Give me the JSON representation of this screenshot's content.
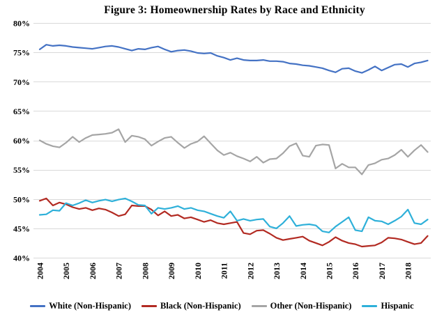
{
  "chart_data": {
    "type": "line",
    "title": "Figure 3: Homeownership Rates by Race and Ethnicity",
    "x_unit": "quarterly",
    "x_tick_labels": [
      "2004",
      "2005",
      "2006",
      "2007",
      "2008",
      "2009",
      "2010",
      "2011",
      "2012",
      "2013",
      "2014",
      "2015",
      "2016",
      "2017",
      "2018"
    ],
    "quarters_per_year": 4,
    "ylim": [
      40,
      80
    ],
    "y_ticks": [
      40,
      45,
      50,
      55,
      60,
      65,
      70,
      75,
      80
    ],
    "y_tick_labels": [
      "40%",
      "45%",
      "50%",
      "55%",
      "60%",
      "65%",
      "70%",
      "75%",
      "80%"
    ],
    "grid": "horizontal",
    "gridline_color": "#d9d9d9",
    "legend_position": "bottom",
    "series": [
      {
        "name": "White (Non-Hispanic)",
        "color": "#4472c4",
        "values": [
          75.5,
          76.3,
          76.1,
          76.2,
          76.1,
          75.9,
          75.8,
          75.7,
          75.6,
          75.8,
          76.0,
          76.1,
          75.9,
          75.6,
          75.3,
          75.6,
          75.5,
          75.8,
          76.0,
          75.5,
          75.1,
          75.3,
          75.4,
          75.2,
          74.9,
          74.8,
          74.9,
          74.4,
          74.1,
          73.7,
          74.0,
          73.7,
          73.6,
          73.6,
          73.7,
          73.5,
          73.5,
          73.4,
          73.1,
          73.0,
          72.8,
          72.7,
          72.5,
          72.3,
          71.9,
          71.6,
          72.2,
          72.3,
          71.8,
          71.5,
          72.0,
          72.6,
          71.9,
          72.4,
          72.9,
          73.0,
          72.5,
          73.1,
          73.3,
          73.6
        ]
      },
      {
        "name": "Black (Non-Hispanic)",
        "color": "#b22a22",
        "values": [
          49.7,
          50.1,
          48.9,
          49.4,
          49.1,
          48.6,
          48.3,
          48.5,
          48.1,
          48.4,
          48.2,
          47.7,
          47.1,
          47.4,
          48.9,
          48.8,
          48.8,
          48.2,
          47.2,
          47.9,
          47.1,
          47.3,
          46.7,
          46.9,
          46.5,
          46.1,
          46.4,
          45.9,
          45.7,
          45.9,
          46.1,
          44.2,
          44.0,
          44.6,
          44.7,
          44.1,
          43.4,
          43.0,
          43.2,
          43.4,
          43.6,
          42.9,
          42.5,
          42.1,
          42.7,
          43.5,
          42.9,
          42.5,
          42.3,
          41.9,
          42.0,
          42.1,
          42.6,
          43.4,
          43.3,
          43.1,
          42.7,
          42.3,
          42.5,
          43.7
        ]
      },
      {
        "name": "Other (Non-Hispanic)",
        "color": "#a5a5a5",
        "values": [
          60.0,
          59.4,
          59.0,
          58.8,
          59.6,
          60.6,
          59.7,
          60.4,
          60.9,
          61.0,
          61.1,
          61.3,
          61.9,
          59.7,
          60.8,
          60.6,
          60.2,
          59.1,
          59.8,
          60.4,
          60.6,
          59.6,
          58.7,
          59.4,
          59.8,
          60.7,
          59.5,
          58.3,
          57.5,
          57.9,
          57.3,
          56.9,
          56.4,
          57.2,
          56.2,
          56.8,
          56.9,
          57.8,
          59.0,
          59.5,
          57.4,
          57.2,
          59.1,
          59.3,
          59.2,
          55.2,
          56.0,
          55.4,
          55.4,
          54.2,
          55.8,
          56.1,
          56.7,
          56.9,
          57.5,
          58.4,
          57.2,
          58.3,
          59.2,
          58.0
        ]
      },
      {
        "name": "Hispanic",
        "color": "#2eb0d9",
        "values": [
          47.3,
          47.4,
          48.1,
          48.0,
          49.3,
          48.9,
          49.3,
          49.8,
          49.4,
          49.7,
          49.9,
          49.6,
          49.9,
          50.1,
          49.6,
          49.0,
          48.9,
          47.5,
          48.5,
          48.3,
          48.5,
          48.8,
          48.3,
          48.5,
          48.1,
          47.9,
          47.5,
          47.1,
          46.8,
          47.9,
          46.3,
          46.6,
          46.3,
          46.5,
          46.6,
          45.3,
          45.0,
          45.9,
          47.1,
          45.4,
          45.6,
          45.7,
          45.5,
          44.5,
          44.3,
          45.3,
          46.1,
          46.9,
          44.7,
          44.5,
          46.9,
          46.3,
          46.2,
          45.7,
          46.3,
          47.0,
          48.2,
          45.9,
          45.7,
          46.5
        ]
      }
    ]
  }
}
